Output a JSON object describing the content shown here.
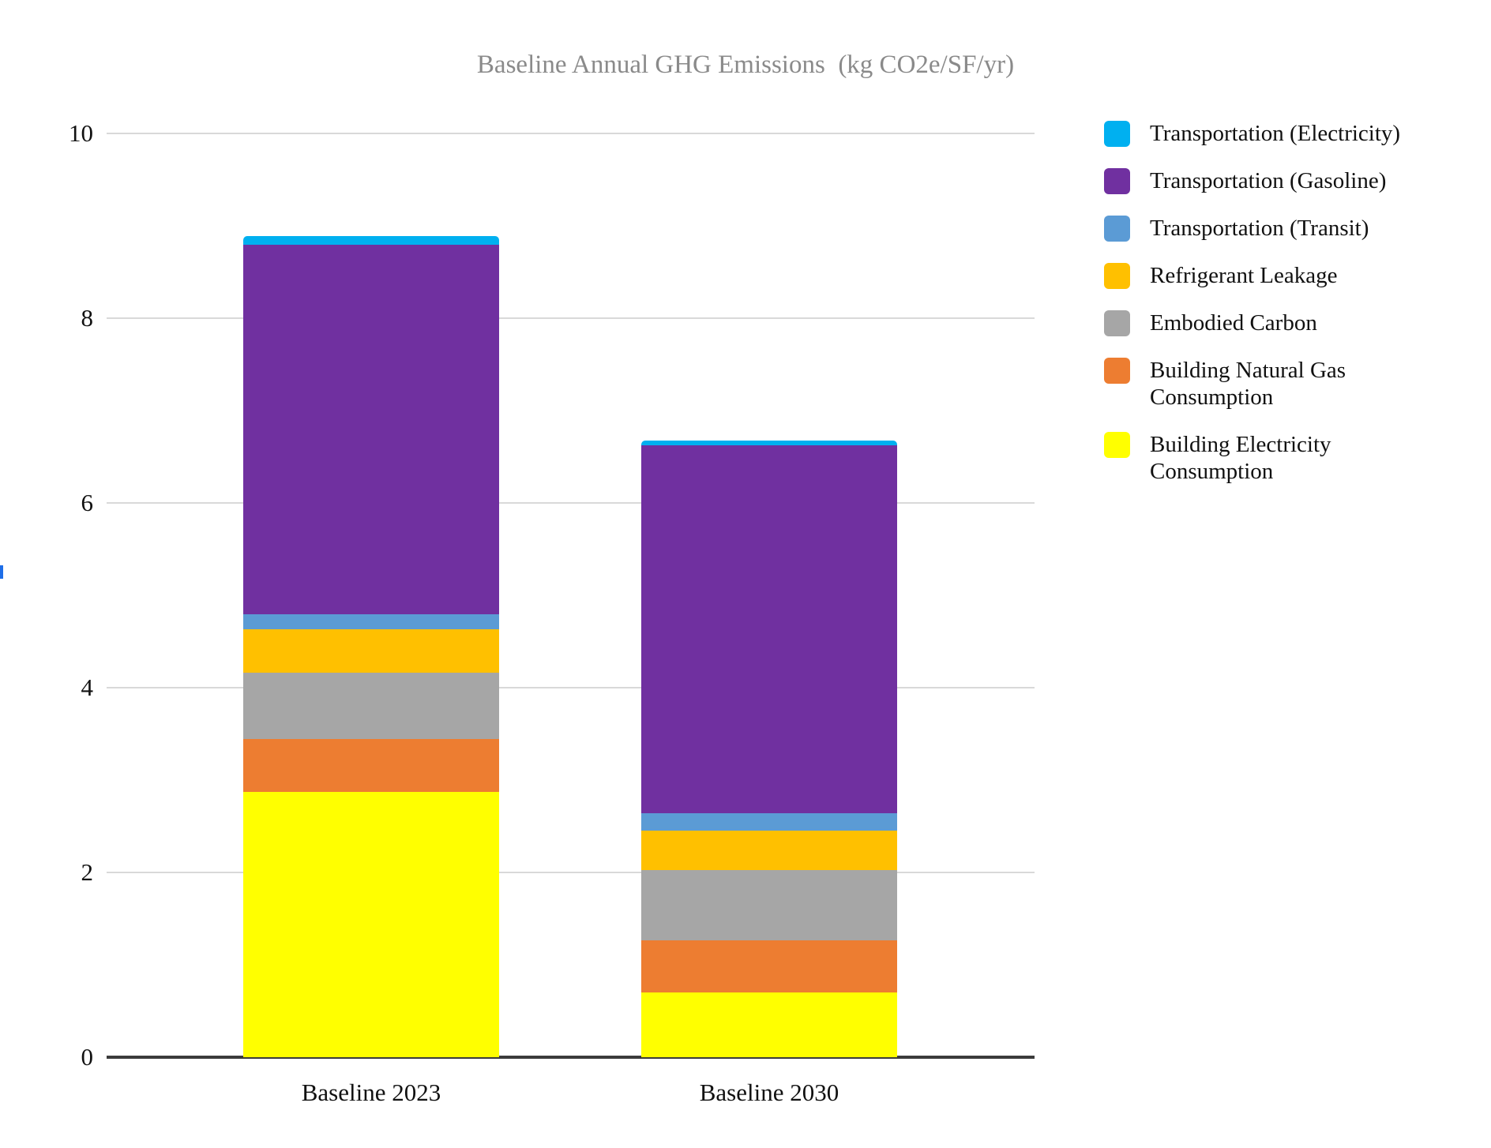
{
  "chart_data": {
    "type": "bar",
    "stacked": true,
    "title": "Baseline Annual GHG Emissions  (kg CO2e/SF/yr)",
    "categories": [
      "Baseline 2023",
      "Baseline 2030"
    ],
    "series": [
      {
        "name": "Transportation (Electricity)",
        "color": "#00B0F0",
        "values": [
          0.09,
          0.05
        ]
      },
      {
        "name": "Transportation (Gasoline)",
        "color": "#7030A0",
        "values": [
          4.0,
          3.98
        ]
      },
      {
        "name": "Transportation (Transit)",
        "color": "#5B9BD5",
        "values": [
          0.16,
          0.19
        ]
      },
      {
        "name": "Refrigerant Leakage",
        "color": "#FFC000",
        "values": [
          0.47,
          0.43
        ]
      },
      {
        "name": "Embodied Carbon",
        "color": "#A6A6A6",
        "values": [
          0.72,
          0.76
        ]
      },
      {
        "name": "Building Natural Gas Consumption",
        "color": "#ED7D31",
        "values": [
          0.57,
          0.56
        ]
      },
      {
        "name": "Building Electricity Consumption",
        "color": "#FFFF00",
        "values": [
          2.87,
          0.7
        ]
      }
    ],
    "series_note": "series listed in legend order; first series is the top-most stacked segment",
    "totals": [
      8.88,
      6.67
    ],
    "ylim": [
      0,
      10
    ],
    "yticks": [
      0,
      2,
      4,
      6,
      8,
      10
    ],
    "xlabel": "",
    "ylabel": "",
    "grid": true,
    "legend_position": "right",
    "title_color": "#8a8a8a",
    "gridline_color": "#d9d9d9",
    "axisline_color": "#3b3b3b"
  },
  "ui": {
    "left_edge_marker_color": "#1E6EE8"
  }
}
